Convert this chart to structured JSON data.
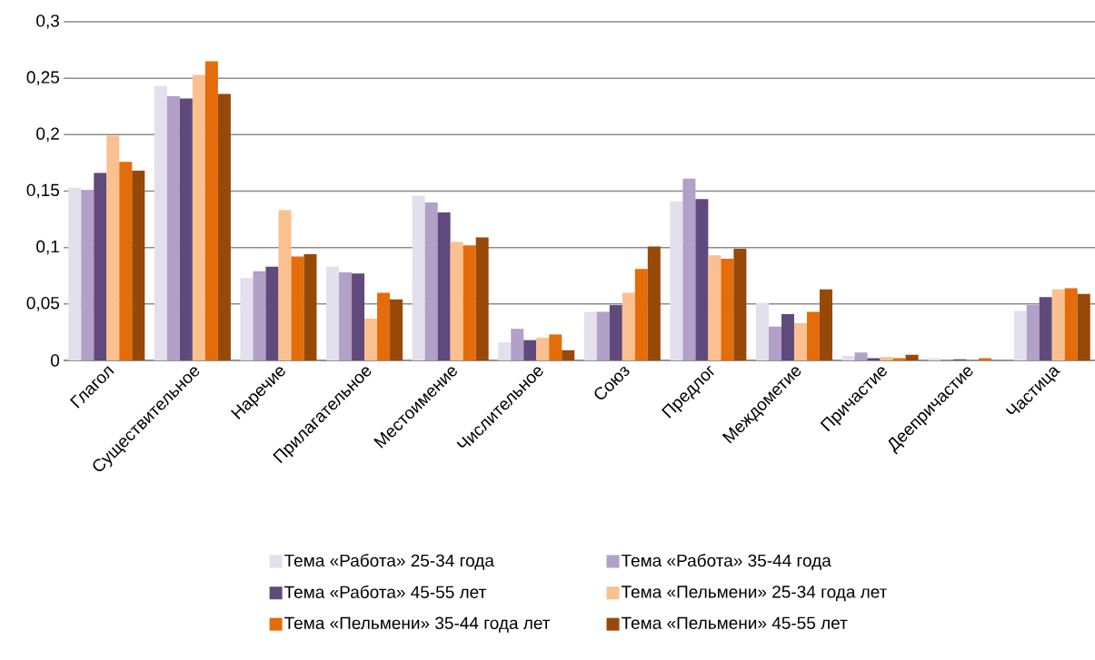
{
  "chart_data": {
    "type": "bar",
    "categories": [
      "Глагол",
      "Существительное",
      "Наречие",
      "Прилагательное",
      "Местоимение",
      "Числительное",
      "Союз",
      "Предлог",
      "Междометие",
      "Причастие",
      "Деепричастие",
      "Частица"
    ],
    "series": [
      {
        "name": "Тема «Работа» 25-34 года",
        "color": "#e4dfec",
        "values": [
          0.153,
          0.243,
          0.073,
          0.083,
          0.146,
          0.016,
          0.043,
          0.141,
          0.051,
          0.004,
          0.002,
          0.044
        ]
      },
      {
        "name": "Тема «Работа» 35-44 года",
        "color": "#b1a0c7",
        "values": [
          0.151,
          0.234,
          0.079,
          0.078,
          0.14,
          0.028,
          0.043,
          0.161,
          0.03,
          0.007,
          null,
          0.049
        ]
      },
      {
        "name": "Тема «Работа» 45-55  лет",
        "color": "#604a7b",
        "values": [
          0.166,
          0.232,
          0.083,
          0.077,
          0.131,
          0.018,
          0.049,
          0.143,
          0.041,
          0.002,
          0.001,
          0.056
        ]
      },
      {
        "name": "Тема «Пельмени» 25-34 года лет",
        "color": "#fac090",
        "values": [
          0.199,
          0.253,
          0.133,
          0.037,
          0.105,
          0.02,
          0.06,
          0.093,
          0.033,
          0.003,
          0.0,
          0.063
        ]
      },
      {
        "name": "Тема «Пельмени» 35-44 года лет",
        "color": "#e46c0a",
        "values": [
          0.176,
          0.265,
          0.092,
          0.06,
          0.102,
          0.023,
          0.081,
          0.09,
          0.043,
          0.002,
          0.002,
          0.064
        ]
      },
      {
        "name": "Тема «Пельмени» 45-55  лет",
        "color": "#984807",
        "values": [
          0.168,
          0.236,
          0.094,
          0.054,
          0.109,
          0.009,
          0.101,
          0.099,
          0.063,
          0.005,
          0.0,
          0.059
        ]
      }
    ],
    "ylim": [
      0,
      0.3
    ],
    "yticks": [
      {
        "value": 0,
        "label": "0"
      },
      {
        "value": 0.05,
        "label": "0,05"
      },
      {
        "value": 0.1,
        "label": "0,1"
      },
      {
        "value": 0.15,
        "label": "0,15"
      },
      {
        "value": 0.2,
        "label": "0,2"
      },
      {
        "value": 0.25,
        "label": "0,25"
      },
      {
        "value": 0.3,
        "label": "0,3"
      }
    ],
    "grid": "y",
    "legend": "bottom"
  }
}
